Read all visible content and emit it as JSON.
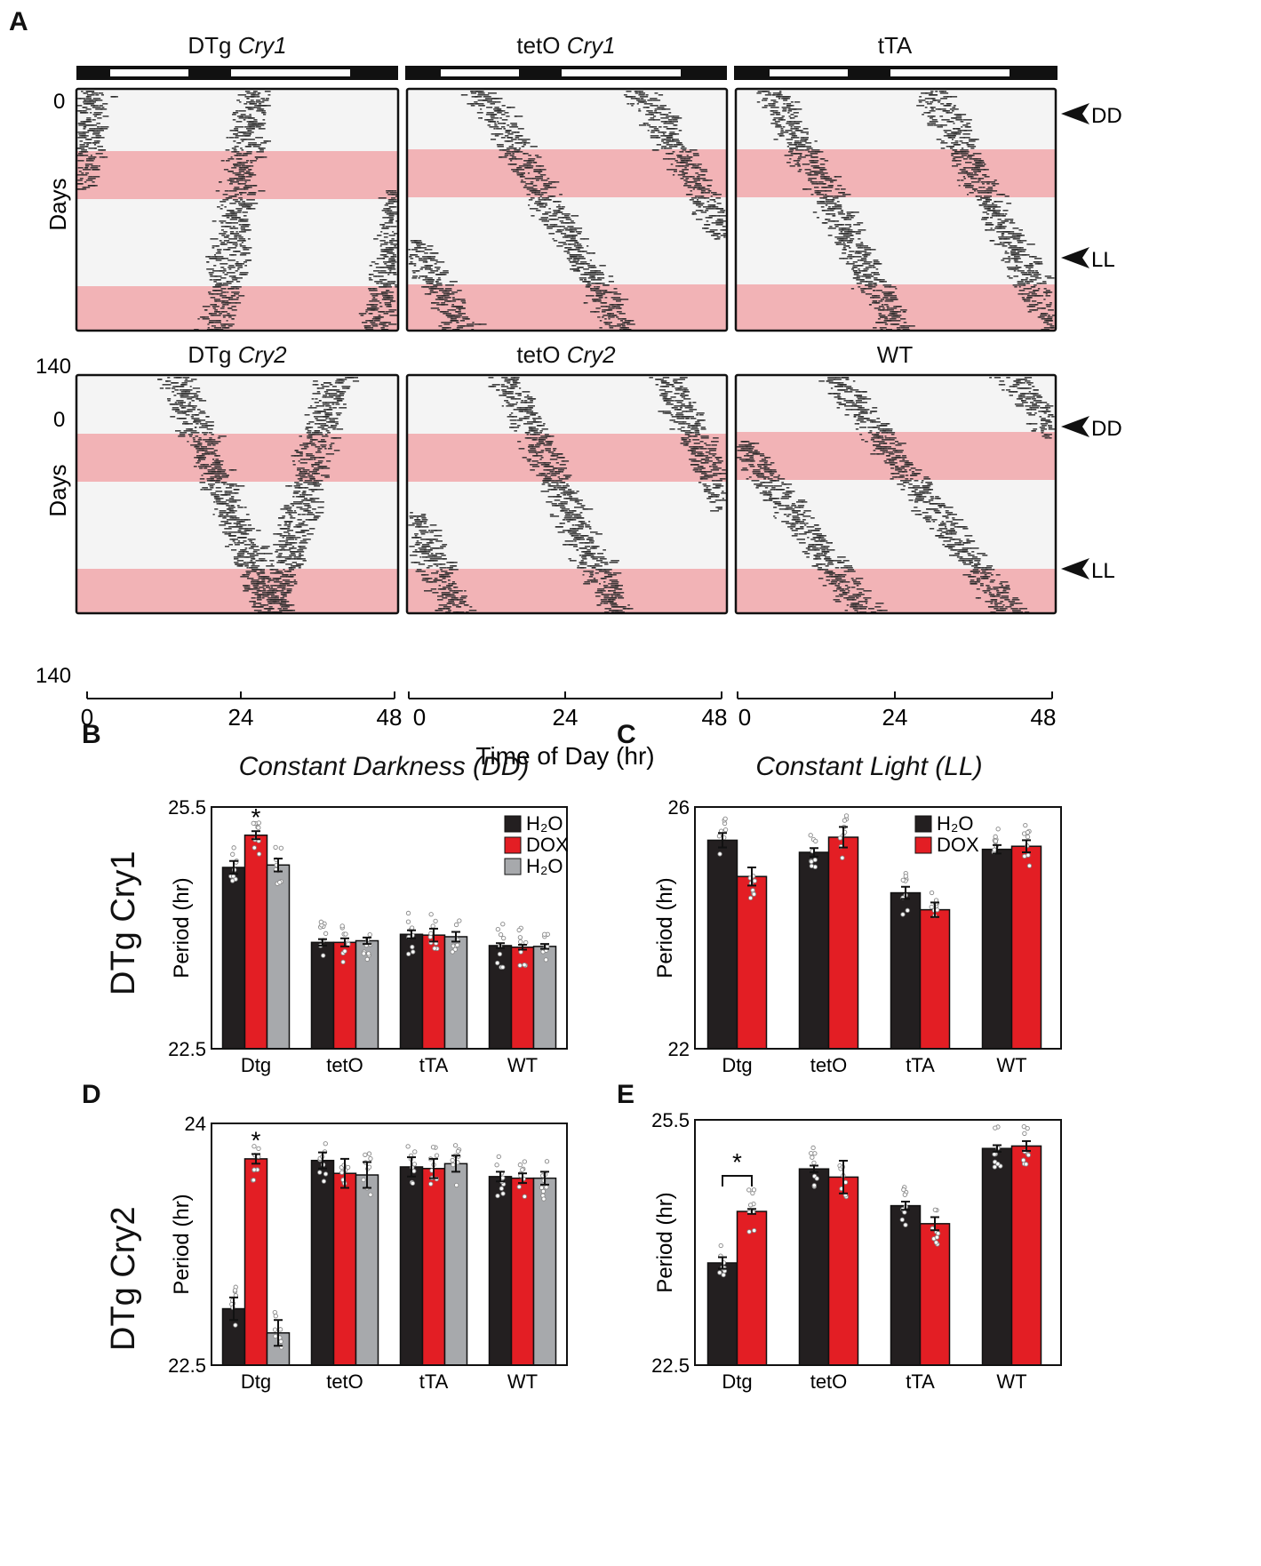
{
  "panel_labels": {
    "A": "A",
    "B": "B",
    "C": "C",
    "D": "D",
    "E": "E"
  },
  "actograms": {
    "titles": [
      {
        "main": "DTg ",
        "italic": "Cry1"
      },
      {
        "main": "tetO ",
        "italic": "Cry1"
      },
      {
        "main": "tTA",
        "italic": ""
      },
      {
        "main": "DTg ",
        "italic": "Cry2"
      },
      {
        "main": "tetO ",
        "italic": "Cry2"
      },
      {
        "main": "WT",
        "italic": ""
      }
    ],
    "y_axis_label": "Days",
    "y_ticks": [
      "0",
      "140"
    ],
    "x_ticks": [
      "0",
      "24",
      "48"
    ],
    "x_axis_label": "Time of Day (hr)",
    "markers": [
      "DD",
      "LL"
    ],
    "dox_color": "#f0a8ac"
  },
  "chart_data": [
    {
      "type": "bar",
      "id": "B",
      "title": "Constant Darkness (DD)",
      "row_label": "DTg Cry1",
      "ylabel": "Period (hr)",
      "ylim": [
        22.5,
        25.5
      ],
      "yticks": [
        "25.5",
        "22.5"
      ],
      "categories": [
        "Dtg",
        "tetO",
        "tTA",
        "WT"
      ],
      "series": [
        {
          "name": "H₂O",
          "color": "#231f20",
          "values": [
            24.75,
            23.82,
            23.92,
            23.78
          ],
          "errors": [
            0.08,
            0.04,
            0.05,
            0.03
          ]
        },
        {
          "name": "DOX",
          "color": "#e31e24",
          "values": [
            25.15,
            23.82,
            23.91,
            23.76
          ],
          "errors": [
            0.05,
            0.05,
            0.08,
            0.03
          ]
        },
        {
          "name": "H₂O",
          "color": "#a7a9ac",
          "values": [
            24.78,
            23.84,
            23.89,
            23.77
          ],
          "errors": [
            0.08,
            0.04,
            0.06,
            0.03
          ]
        }
      ],
      "annotations": [
        {
          "text": "*",
          "category": 0,
          "series": 1
        }
      ]
    },
    {
      "type": "bar",
      "id": "C",
      "title": "Constant Light (LL)",
      "ylabel": "Period (hr)",
      "ylim": [
        22,
        26
      ],
      "yticks": [
        "26",
        "22"
      ],
      "categories": [
        "Dtg",
        "tetO",
        "tTA",
        "WT"
      ],
      "series": [
        {
          "name": "H₂O",
          "color": "#231f20",
          "values": [
            25.45,
            25.25,
            24.58,
            25.3
          ],
          "errors": [
            0.12,
            0.07,
            0.1,
            0.07
          ]
        },
        {
          "name": "DOX",
          "color": "#e31e24",
          "values": [
            24.85,
            25.5,
            24.3,
            25.35
          ],
          "errors": [
            0.15,
            0.17,
            0.12,
            0.1
          ]
        }
      ],
      "annotations": []
    },
    {
      "type": "bar",
      "id": "D",
      "row_label": "DTg Cry2",
      "ylabel": "Period (hr)",
      "ylim": [
        22.5,
        24
      ],
      "yticks": [
        "24",
        "22.5"
      ],
      "categories": [
        "Dtg",
        "tetO",
        "tTA",
        "WT"
      ],
      "series": [
        {
          "name": "H₂O",
          "color": "#231f20",
          "values": [
            22.85,
            23.77,
            23.73,
            23.67
          ],
          "errors": [
            0.07,
            0.05,
            0.06,
            0.03
          ]
        },
        {
          "name": "DOX",
          "color": "#e31e24",
          "values": [
            23.78,
            23.69,
            23.72,
            23.66
          ],
          "errors": [
            0.03,
            0.09,
            0.06,
            0.03
          ]
        },
        {
          "name": "H₂O",
          "color": "#a7a9ac",
          "values": [
            22.7,
            23.68,
            23.75,
            23.66
          ],
          "errors": [
            0.08,
            0.08,
            0.05,
            0.04
          ]
        }
      ],
      "annotations": [
        {
          "text": "*",
          "category": 0,
          "series": 1
        }
      ]
    },
    {
      "type": "bar",
      "id": "E",
      "ylabel": "Period (hr)",
      "ylim": [
        22.5,
        25.5
      ],
      "yticks": [
        "25.5",
        "22.5"
      ],
      "categories": [
        "Dtg",
        "tetO",
        "tTA",
        "WT"
      ],
      "series": [
        {
          "name": "H₂O",
          "color": "#231f20",
          "values": [
            23.75,
            24.9,
            24.45,
            25.15
          ],
          "errors": [
            0.07,
            0.04,
            0.05,
            0.04
          ]
        },
        {
          "name": "DOX",
          "color": "#e31e24",
          "values": [
            24.38,
            24.8,
            24.23,
            25.18
          ],
          "errors": [
            0.03,
            0.2,
            0.08,
            0.06
          ]
        }
      ],
      "annotations": [
        {
          "text": "*",
          "category": 0,
          "bracket": true
        }
      ]
    }
  ]
}
